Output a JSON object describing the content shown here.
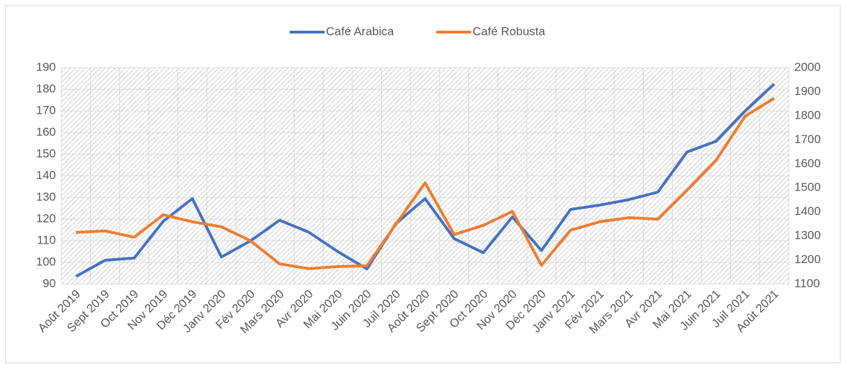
{
  "chart_data": {
    "type": "line",
    "categories": [
      "Août 2019",
      "Sept 2019",
      "Oct 2019",
      "Nov 2019",
      "Déc 2019",
      "Janv 2020",
      "Fév 2020",
      "Mars 2020",
      "Avr 2020",
      "Mai 2020",
      "Juin 2020",
      "Juil 2020",
      "Août 2020",
      "Sept 2020",
      "Oct 2020",
      "Nov 2020",
      "Déc 2020",
      "Janv 2021",
      "Fév 2021",
      "Mars 2021",
      "Avr 2021",
      "Mai 2021",
      "Juin 2021",
      "Juil 2021",
      "Août 2021"
    ],
    "series": [
      {
        "name": "Café Arabica",
        "color": "#4472c4",
        "values": [
          93.5,
          101,
          102,
          119,
          129.5,
          102.5,
          110,
          119.5,
          114,
          105,
          97,
          118,
          129.5,
          111,
          104.5,
          121,
          105.5,
          124.5,
          126.5,
          129,
          132.5,
          151,
          156,
          170,
          182.5
        ]
      },
      {
        "name": "Café Robusta",
        "color": "#ed7d31",
        "axis": "y2",
        "values": [
          1315,
          1321,
          1295,
          1388,
          1359,
          1338,
          1280,
          1184,
          1164,
          1173,
          1176,
          1350,
          1521,
          1306,
          1344,
          1402,
          1178,
          1324,
          1359,
          1376,
          1370,
          1490,
          1615,
          1798,
          1873
        ]
      }
    ],
    "ylim": [
      90,
      190
    ],
    "yticks": [
      90,
      100,
      110,
      120,
      130,
      140,
      150,
      160,
      170,
      180,
      190
    ],
    "y2lim": [
      1100,
      2000
    ],
    "y2ticks": [
      1100,
      1200,
      1300,
      1400,
      1500,
      1600,
      1700,
      1800,
      1900,
      2000
    ],
    "grid": true,
    "legend": "top"
  }
}
